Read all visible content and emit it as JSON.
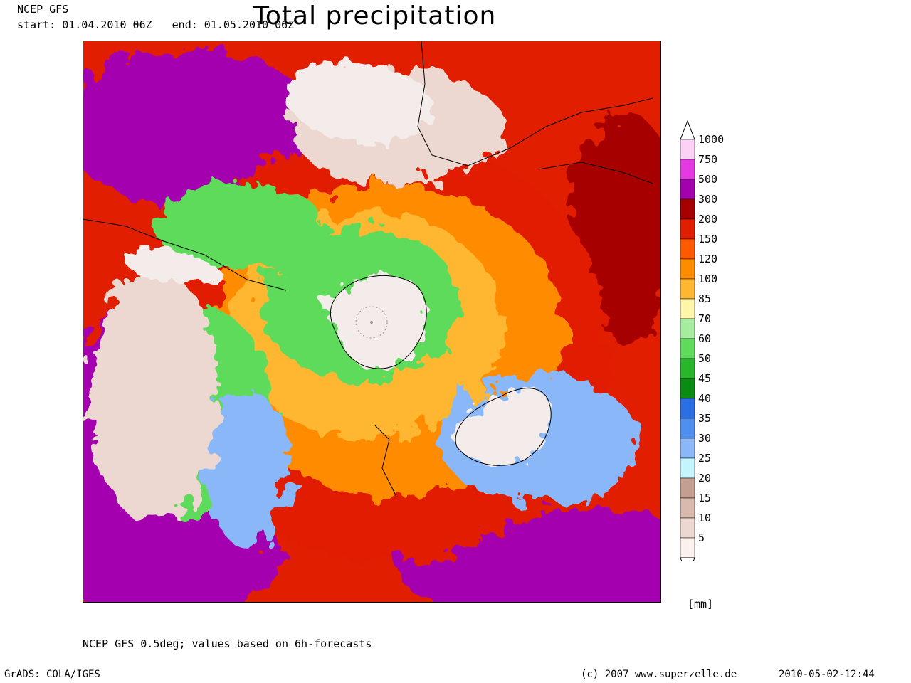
{
  "header": {
    "model": "NCEP GFS",
    "start": "start: 01.04.2010_06Z",
    "end": "end: 01.05.2010_06Z",
    "title": "Total precipitation"
  },
  "legend": {
    "units": "[mm]",
    "levels": [
      "1000",
      "750",
      "500",
      "300",
      "200",
      "150",
      "120",
      "100",
      "85",
      "70",
      "60",
      "50",
      "45",
      "40",
      "35",
      "30",
      "25",
      "20",
      "15",
      "10",
      "5"
    ],
    "colors": [
      "#fdd0f6",
      "#e53ae3",
      "#a400b0",
      "#a70000",
      "#e11e00",
      "#ff5a00",
      "#ff8c00",
      "#ffb732",
      "#fff5a8",
      "#a6ec9f",
      "#5fdb5c",
      "#28b62a",
      "#0a8b11",
      "#2b6fe6",
      "#4f8ff0",
      "#8ab7f8",
      "#c4f5ff",
      "#c49f91",
      "#d9b8ad",
      "#ecd8d0",
      "#faf0ec"
    ],
    "arrow_color": "#ffffff"
  },
  "map": {
    "ocean_colors": [
      "#a400b0",
      "#a70000",
      "#e11e00",
      "#ff8c00",
      "#ffb732",
      "#5fdb5c",
      "#8ab7f8",
      "#ecd8d0"
    ],
    "land_color": "#f3ecea",
    "coast_color": "#000000"
  },
  "footer": {
    "source": "NCEP GFS 0.5deg; values based on 6h-forecasts",
    "grads": "GrADS: COLA/IGES",
    "copyright": "(c) 2007 www.superzelle.de",
    "timestamp": "2010-05-02-12:44"
  }
}
